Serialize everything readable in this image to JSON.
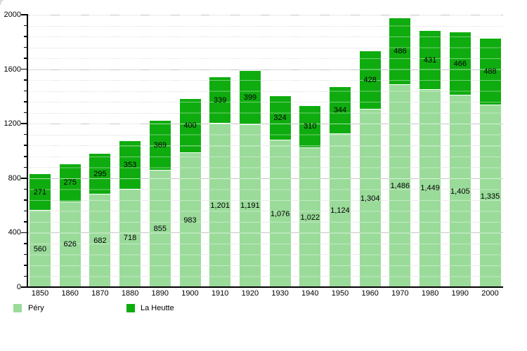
{
  "page": {
    "background": "#ffffff"
  },
  "chart_data": {
    "type": "bar",
    "stacked": true,
    "categories": [
      "1850",
      "1860",
      "1870",
      "1880",
      "1890",
      "1900",
      "1910",
      "1920",
      "1930",
      "1940",
      "1950",
      "1960",
      "1970",
      "1980",
      "1990",
      "2000"
    ],
    "series": [
      {
        "name": "Péry",
        "color": "#9ADB9A",
        "values": [
          560,
          626,
          682,
          718,
          855,
          983,
          1201,
          1191,
          1076,
          1022,
          1124,
          1304,
          1486,
          1449,
          1405,
          1335
        ]
      },
      {
        "name": "La Heutte",
        "color": "#0FAC0F",
        "values": [
          271,
          275,
          295,
          353,
          369,
          400,
          339,
          399,
          324,
          310,
          344,
          428,
          486,
          431,
          466,
          488
        ]
      }
    ],
    "ylim": [
      0,
      2000
    ],
    "y_major_step": 400,
    "y_minor_step": 80,
    "y_ticks": [
      "0",
      "400",
      "800",
      "1200",
      "1600",
      "2000"
    ],
    "grid": true,
    "value_labels": true,
    "value_label_format": "thousands-comma",
    "legend_position": "bottom-left",
    "axis_color": "#000000",
    "gridline_major_color": "#c8c8c8",
    "gridline_minor_color": "#ececec"
  }
}
